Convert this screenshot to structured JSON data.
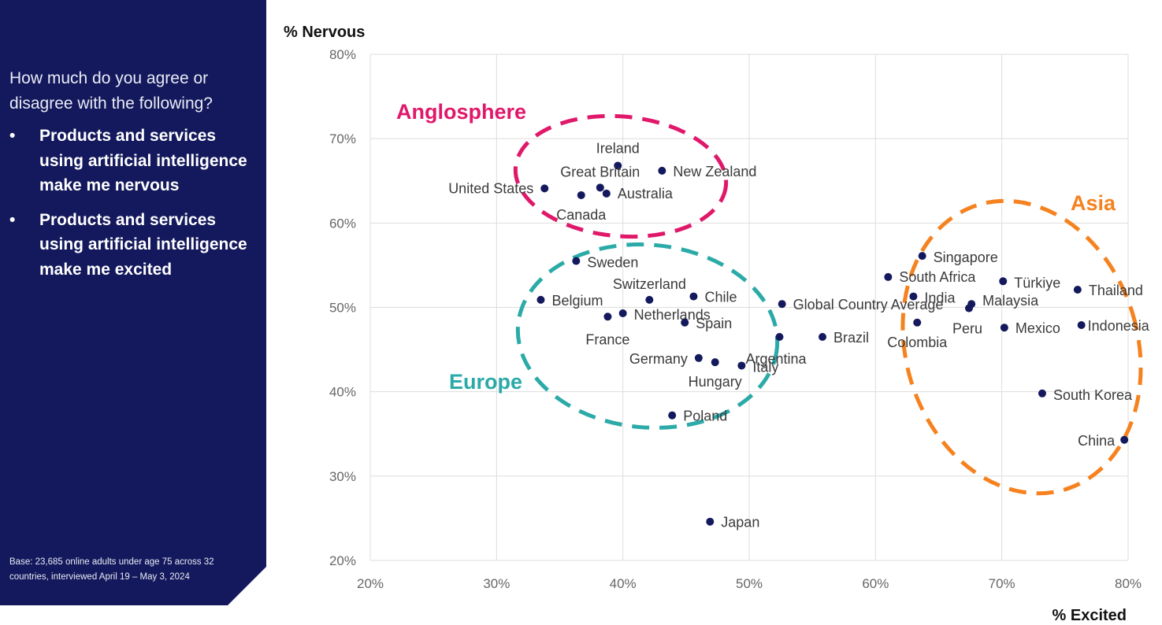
{
  "sidebar": {
    "question": "How much do you agree or disagree with the following?",
    "bullets": [
      "Products and services using artificial intelligence make me nervous",
      "Products and services using artificial intelligence make me excited"
    ],
    "bullet_symbol": "•",
    "base_note": "Base: 23,685 online adults under age 75 across 32 countries, interviewed April 19 – May 3, 2024",
    "background_color": "#13195c"
  },
  "chart_data": {
    "type": "scatter",
    "xlabel": "% Excited",
    "ylabel": "% Nervous",
    "xlim": [
      20,
      80
    ],
    "ylim": [
      20,
      80
    ],
    "x_ticks": [
      "20%",
      "30%",
      "40%",
      "50%",
      "60%",
      "70%",
      "80%"
    ],
    "y_ticks": [
      "20%",
      "30%",
      "40%",
      "50%",
      "60%",
      "70%",
      "80%"
    ],
    "grid": true,
    "point_color": "#13195c",
    "points": [
      {
        "name": "Ireland",
        "x": 39.6,
        "y": 66.8
      },
      {
        "name": "New Zealand",
        "x": 43.1,
        "y": 66.2
      },
      {
        "name": "Great Britain",
        "x": 38.2,
        "y": 64.2
      },
      {
        "name": "United States",
        "x": 33.8,
        "y": 64.1
      },
      {
        "name": "Australia",
        "x": 38.7,
        "y": 63.5
      },
      {
        "name": "Canada",
        "x": 36.7,
        "y": 63.3
      },
      {
        "name": "Sweden",
        "x": 36.3,
        "y": 55.5
      },
      {
        "name": "Switzerland",
        "x": 42.1,
        "y": 50.9
      },
      {
        "name": "Chile",
        "x": 45.6,
        "y": 51.3
      },
      {
        "name": "Belgium",
        "x": 33.5,
        "y": 50.9
      },
      {
        "name": "Netherlands",
        "x": 40.0,
        "y": 49.3
      },
      {
        "name": "France",
        "x": 38.8,
        "y": 48.9
      },
      {
        "name": "Spain",
        "x": 44.9,
        "y": 48.2
      },
      {
        "name": "Global Country Average",
        "x": 52.6,
        "y": 50.4
      },
      {
        "name": "Brazil",
        "x": 55.8,
        "y": 46.5
      },
      {
        "name": "Argentina",
        "x": 52.4,
        "y": 46.5
      },
      {
        "name": "Germany",
        "x": 46.0,
        "y": 44.0
      },
      {
        "name": "Hungary",
        "x": 47.3,
        "y": 43.5
      },
      {
        "name": "Italy",
        "x": 49.4,
        "y": 43.1
      },
      {
        "name": "Poland",
        "x": 43.9,
        "y": 37.2
      },
      {
        "name": "Japan",
        "x": 46.9,
        "y": 24.6
      },
      {
        "name": "Singapore",
        "x": 63.7,
        "y": 56.1
      },
      {
        "name": "South Africa",
        "x": 61.0,
        "y": 53.6
      },
      {
        "name": "Türkiye",
        "x": 70.1,
        "y": 53.1
      },
      {
        "name": "Thailand",
        "x": 76.0,
        "y": 52.1
      },
      {
        "name": "India",
        "x": 63.0,
        "y": 51.3
      },
      {
        "name": "Malaysia",
        "x": 67.6,
        "y": 50.4
      },
      {
        "name": "Peru",
        "x": 67.4,
        "y": 49.9
      },
      {
        "name": "Colombia",
        "x": 63.3,
        "y": 48.2
      },
      {
        "name": "Mexico",
        "x": 70.2,
        "y": 47.6
      },
      {
        "name": "Indonesia",
        "x": 76.3,
        "y": 47.9
      },
      {
        "name": "South Korea",
        "x": 73.2,
        "y": 39.8
      },
      {
        "name": "China",
        "x": 79.7,
        "y": 34.3
      }
    ],
    "groups": [
      {
        "name": "Anglosphere",
        "color": "#e0186a"
      },
      {
        "name": "Europe",
        "color": "#2baaa8"
      },
      {
        "name": "Asia",
        "color": "#f5821f"
      }
    ]
  }
}
